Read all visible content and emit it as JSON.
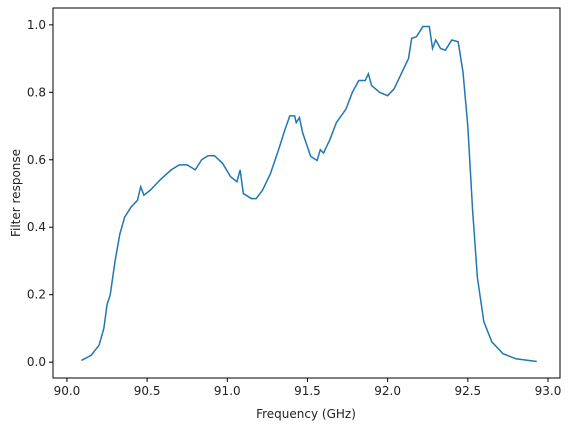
{
  "chart_data": {
    "type": "line",
    "xlabel": "Frequency (GHz)",
    "ylabel": "Filter response",
    "x": [
      90.09,
      90.15,
      90.2,
      90.23,
      90.25,
      90.27,
      90.3,
      90.33,
      90.36,
      90.4,
      90.44,
      90.46,
      90.48,
      90.52,
      90.58,
      90.65,
      90.7,
      90.75,
      90.8,
      90.84,
      90.88,
      90.92,
      90.97,
      91.02,
      91.06,
      91.08,
      91.1,
      91.15,
      91.18,
      91.22,
      91.27,
      91.32,
      91.36,
      91.39,
      91.42,
      91.43,
      91.45,
      91.47,
      91.52,
      91.56,
      91.58,
      91.6,
      91.64,
      91.68,
      91.74,
      91.78,
      91.82,
      91.86,
      91.88,
      91.9,
      91.95,
      92.0,
      92.04,
      92.09,
      92.13,
      92.15,
      92.18,
      92.22,
      92.26,
      92.28,
      92.3,
      92.33,
      92.36,
      92.4,
      92.44,
      92.47,
      92.5,
      92.53,
      92.56,
      92.6,
      92.65,
      92.72,
      92.8,
      92.93
    ],
    "series": [
      {
        "color": "#1f77b4",
        "values": [
          0.005,
          0.02,
          0.05,
          0.1,
          0.17,
          0.2,
          0.3,
          0.38,
          0.43,
          0.46,
          0.48,
          0.52,
          0.495,
          0.51,
          0.54,
          0.57,
          0.585,
          0.585,
          0.57,
          0.6,
          0.612,
          0.612,
          0.59,
          0.55,
          0.535,
          0.57,
          0.5,
          0.485,
          0.485,
          0.51,
          0.56,
          0.63,
          0.69,
          0.73,
          0.73,
          0.71,
          0.725,
          0.68,
          0.61,
          0.598,
          0.63,
          0.62,
          0.66,
          0.71,
          0.75,
          0.8,
          0.835,
          0.835,
          0.855,
          0.82,
          0.8,
          0.79,
          0.81,
          0.86,
          0.9,
          0.96,
          0.965,
          0.995,
          0.995,
          0.93,
          0.955,
          0.93,
          0.925,
          0.955,
          0.95,
          0.86,
          0.7,
          0.45,
          0.25,
          0.12,
          0.06,
          0.025,
          0.01,
          0.002
        ]
      }
    ],
    "xlim": [
      89.913,
      93.075
    ],
    "ylim": [
      -0.047,
      1.05
    ],
    "xticks": [
      {
        "value": 90,
        "label": "90.0"
      },
      90.5,
      {
        "value": 91,
        "label": "91.0"
      },
      91.5,
      {
        "value": 92,
        "label": "92.0"
      },
      92.5,
      {
        "value": 93,
        "label": "93.0"
      }
    ],
    "yticks": [
      {
        "value": 0,
        "label": "0.0"
      },
      0.2,
      0.4,
      0.6,
      0.8,
      {
        "value": 1,
        "label": "1.0"
      }
    ]
  }
}
